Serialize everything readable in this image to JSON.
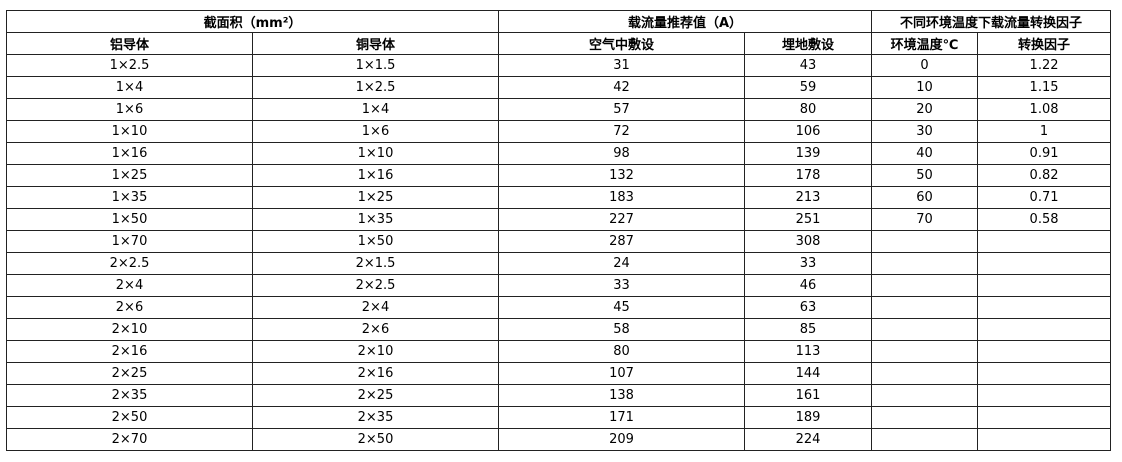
{
  "table": {
    "groups": [
      "截面积（mm²）",
      "载流量推荐值（A）",
      "不同环境温度下载流量转换因子"
    ],
    "columns": [
      "铝导体",
      "铜导体",
      "空气中敷设",
      "埋地敷设",
      "环境温度℃",
      "转换因子"
    ],
    "rows": [
      [
        "1×2.5",
        "1×1.5",
        31,
        43,
        0,
        1.22
      ],
      [
        "1×4",
        "1×2.5",
        42,
        59,
        10,
        1.15
      ],
      [
        "1×6",
        "1×4",
        57,
        80,
        20,
        1.08
      ],
      [
        "1×10",
        "1×6",
        72,
        106,
        30,
        1
      ],
      [
        "1×16",
        "1×10",
        98,
        139,
        40,
        0.91
      ],
      [
        "1×25",
        "1×16",
        132,
        178,
        50,
        0.82
      ],
      [
        "1×35",
        "1×25",
        183,
        213,
        60,
        0.71
      ],
      [
        "1×50",
        "1×35",
        227,
        251,
        70,
        0.58
      ],
      [
        "1×70",
        "1×50",
        287,
        308
      ],
      [
        "2×2.5",
        "2×1.5",
        24,
        33
      ],
      [
        "2×4",
        "2×2.5",
        33,
        46
      ],
      [
        "2×6",
        "2×4",
        45,
        63
      ],
      [
        "2×10",
        "2×6",
        58,
        85
      ],
      [
        "2×16",
        "2×10",
        80,
        113
      ],
      [
        "2×25",
        "2×16",
        107,
        144
      ],
      [
        "2×35",
        "2×25",
        138,
        161
      ],
      [
        "2×50",
        "2×35",
        171,
        189
      ],
      [
        "2×70",
        "2×50",
        209,
        224
      ]
    ]
  }
}
